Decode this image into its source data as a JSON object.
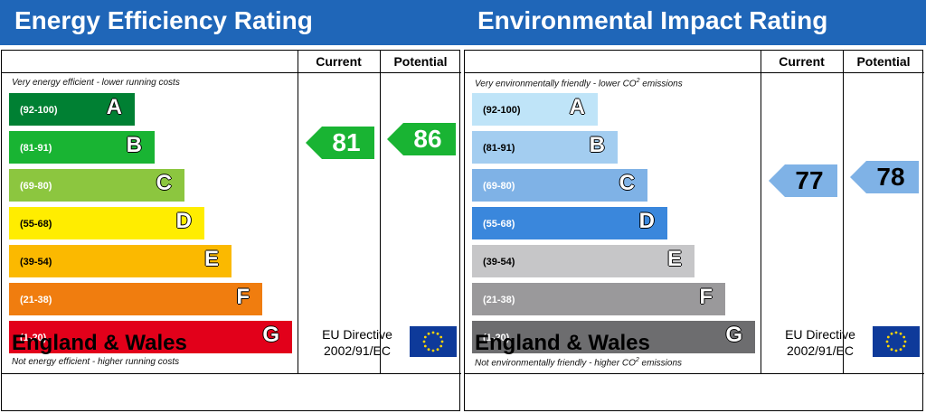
{
  "chart_data": [
    {
      "type": "bar",
      "title": "Energy Efficiency Rating",
      "columns": [
        "Current",
        "Potential"
      ],
      "top_note": "Very energy efficient - lower running costs",
      "bottom_note": "Not energy efficient - higher running costs",
      "bands": [
        {
          "letter": "A",
          "range": "(92-100)",
          "color": "#008033",
          "text": "#ffffff",
          "range_color": "#ffffff"
        },
        {
          "letter": "B",
          "range": "(81-91)",
          "color": "#19b433",
          "text": "#ffffff",
          "range_color": "#ffffff"
        },
        {
          "letter": "C",
          "range": "(69-80)",
          "color": "#8cc63f",
          "text": "#ffffff",
          "range_color": "#ffffff"
        },
        {
          "letter": "D",
          "range": "(55-68)",
          "color": "#ffed00",
          "text": "#ffffff",
          "range_color": "#000000"
        },
        {
          "letter": "E",
          "range": "(39-54)",
          "color": "#fbb900",
          "text": "#ffffff",
          "range_color": "#000000"
        },
        {
          "letter": "F",
          "range": "(21-38)",
          "color": "#f07d0f",
          "text": "#ffffff",
          "range_color": "#ffffff"
        },
        {
          "letter": "G",
          "range": "(1-20)",
          "color": "#e2001a",
          "text": "#ffffff",
          "range_color": "#ffffff"
        }
      ],
      "ratings": {
        "current": {
          "value": 81,
          "band": "B",
          "color": "#19b433",
          "text_color": "#ffffff"
        },
        "potential": {
          "value": 86,
          "band": "B",
          "color": "#19b433",
          "text_color": "#ffffff"
        }
      },
      "footer": {
        "region": "England & Wales",
        "directive_line1": "EU Directive",
        "directive_line2": "2002/91/EC"
      }
    },
    {
      "type": "bar",
      "title": "Environmental Impact Rating",
      "columns": [
        "Current",
        "Potential"
      ],
      "top_note": "Very environmentally friendly - lower CO",
      "top_note_sup": "2",
      "top_note_tail": " emissions",
      "bottom_note": "Not environmentally friendly - higher CO",
      "bottom_note_sup": "2",
      "bottom_note_tail": " emissions",
      "bands": [
        {
          "letter": "A",
          "range": "(92-100)",
          "color": "#bfe4f8",
          "text": "#ffffff",
          "range_color": "#000000"
        },
        {
          "letter": "B",
          "range": "(81-91)",
          "color": "#a3cdf0",
          "text": "#ffffff",
          "range_color": "#000000"
        },
        {
          "letter": "C",
          "range": "(69-80)",
          "color": "#7fb2e6",
          "text": "#ffffff",
          "range_color": "#ffffff"
        },
        {
          "letter": "D",
          "range": "(55-68)",
          "color": "#3a87dc",
          "text": "#ffffff",
          "range_color": "#ffffff"
        },
        {
          "letter": "E",
          "range": "(39-54)",
          "color": "#c6c6c8",
          "text": "#ffffff",
          "range_color": "#000000"
        },
        {
          "letter": "F",
          "range": "(21-38)",
          "color": "#9a999b",
          "text": "#ffffff",
          "range_color": "#ffffff"
        },
        {
          "letter": "G",
          "range": "(1-20)",
          "color": "#6d6d6f",
          "text": "#ffffff",
          "range_color": "#ffffff"
        }
      ],
      "ratings": {
        "current": {
          "value": 77,
          "band": "C",
          "color": "#7fb2e6",
          "text_color": "#000000"
        },
        "potential": {
          "value": 78,
          "band": "C",
          "color": "#7fb2e6",
          "text_color": "#000000"
        }
      },
      "footer": {
        "region": "England & Wales",
        "directive_line1": "EU Directive",
        "directive_line2": "2002/91/EC"
      }
    }
  ]
}
